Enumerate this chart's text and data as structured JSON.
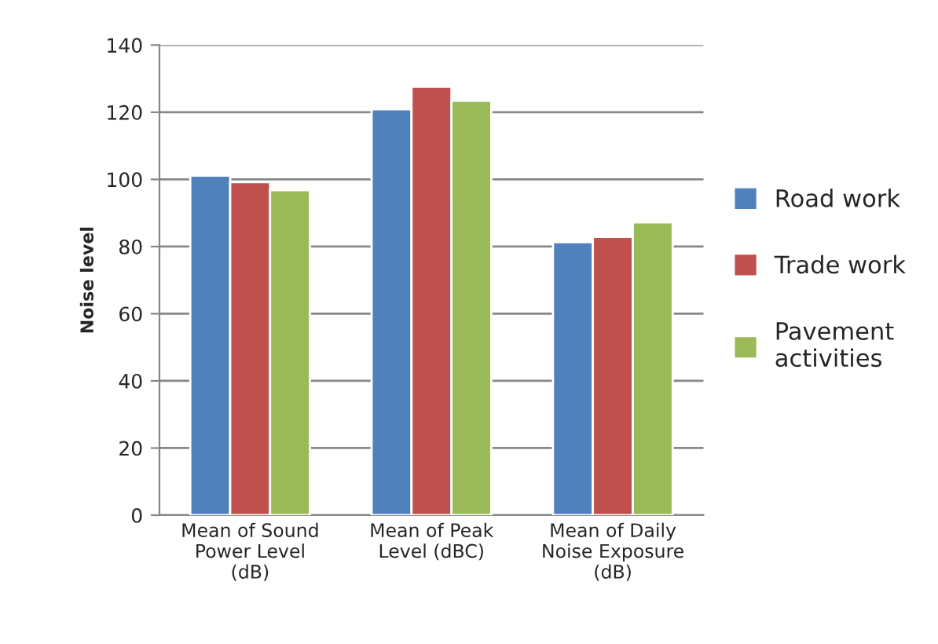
{
  "chart_data": {
    "type": "bar",
    "ylabel": "Noise level",
    "categories": [
      "Mean of Sound\nPower Level\n(dB)",
      "Mean of Peak\nLevel (dBC)",
      "Mean of Daily\nNoise Exposure\n(dB)"
    ],
    "series": [
      {
        "name": "Road work",
        "color": "#4f81bd",
        "values": [
          101.1,
          120.9,
          81.3
        ]
      },
      {
        "name": "Trade work",
        "color": "#c0504d",
        "values": [
          99.2,
          127.6,
          82.9
        ]
      },
      {
        "name": "Pavement\nactivities",
        "color": "#9bbb59",
        "values": [
          96.8,
          123.4,
          87.2
        ]
      }
    ],
    "ylim": [
      0,
      140
    ],
    "yticks": [
      0,
      20,
      40,
      60,
      80,
      100,
      120,
      140
    ],
    "grid": "y",
    "legend": "right"
  }
}
